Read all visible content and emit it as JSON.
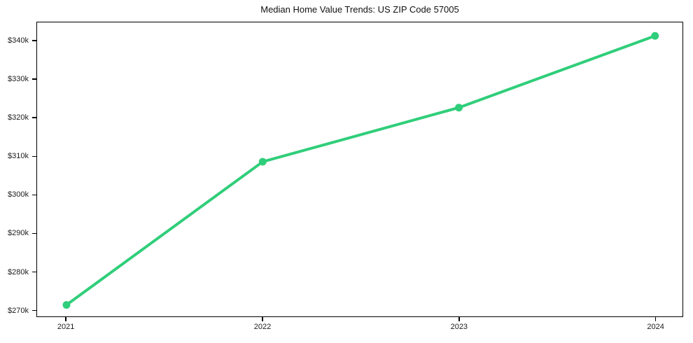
{
  "chart_data": {
    "type": "line",
    "title": "Median Home Value Trends: US ZIP Code 57005",
    "x": [
      2021,
      2022,
      2023,
      2024
    ],
    "x_tick_labels": [
      "2021",
      "2022",
      "2023",
      "2024"
    ],
    "series": [
      {
        "values_thousands": [
          271.3,
          308.6,
          322.7,
          341.4
        ]
      }
    ],
    "y_ticks": [
      {
        "value": 270,
        "label": "$270k"
      },
      {
        "value": 280,
        "label": "$280k"
      },
      {
        "value": 290,
        "label": "$290k"
      },
      {
        "value": 300,
        "label": "$300k"
      },
      {
        "value": 310,
        "label": "$310k"
      },
      {
        "value": 320,
        "label": "$320k"
      },
      {
        "value": 330,
        "label": "$330k"
      },
      {
        "value": 340,
        "label": "$340k"
      }
    ],
    "xlim": [
      2020.85,
      2024.14
    ],
    "ylim_thousands": [
      268.3,
      344.9
    ],
    "grid": false,
    "legend": false,
    "line_color": "#30ce7a",
    "marker": "circle",
    "marker_radius": 5.5,
    "line_width": 4,
    "axis_color": "#000000",
    "text_color": "#1c1c1c",
    "background_color": "#ffffff"
  }
}
